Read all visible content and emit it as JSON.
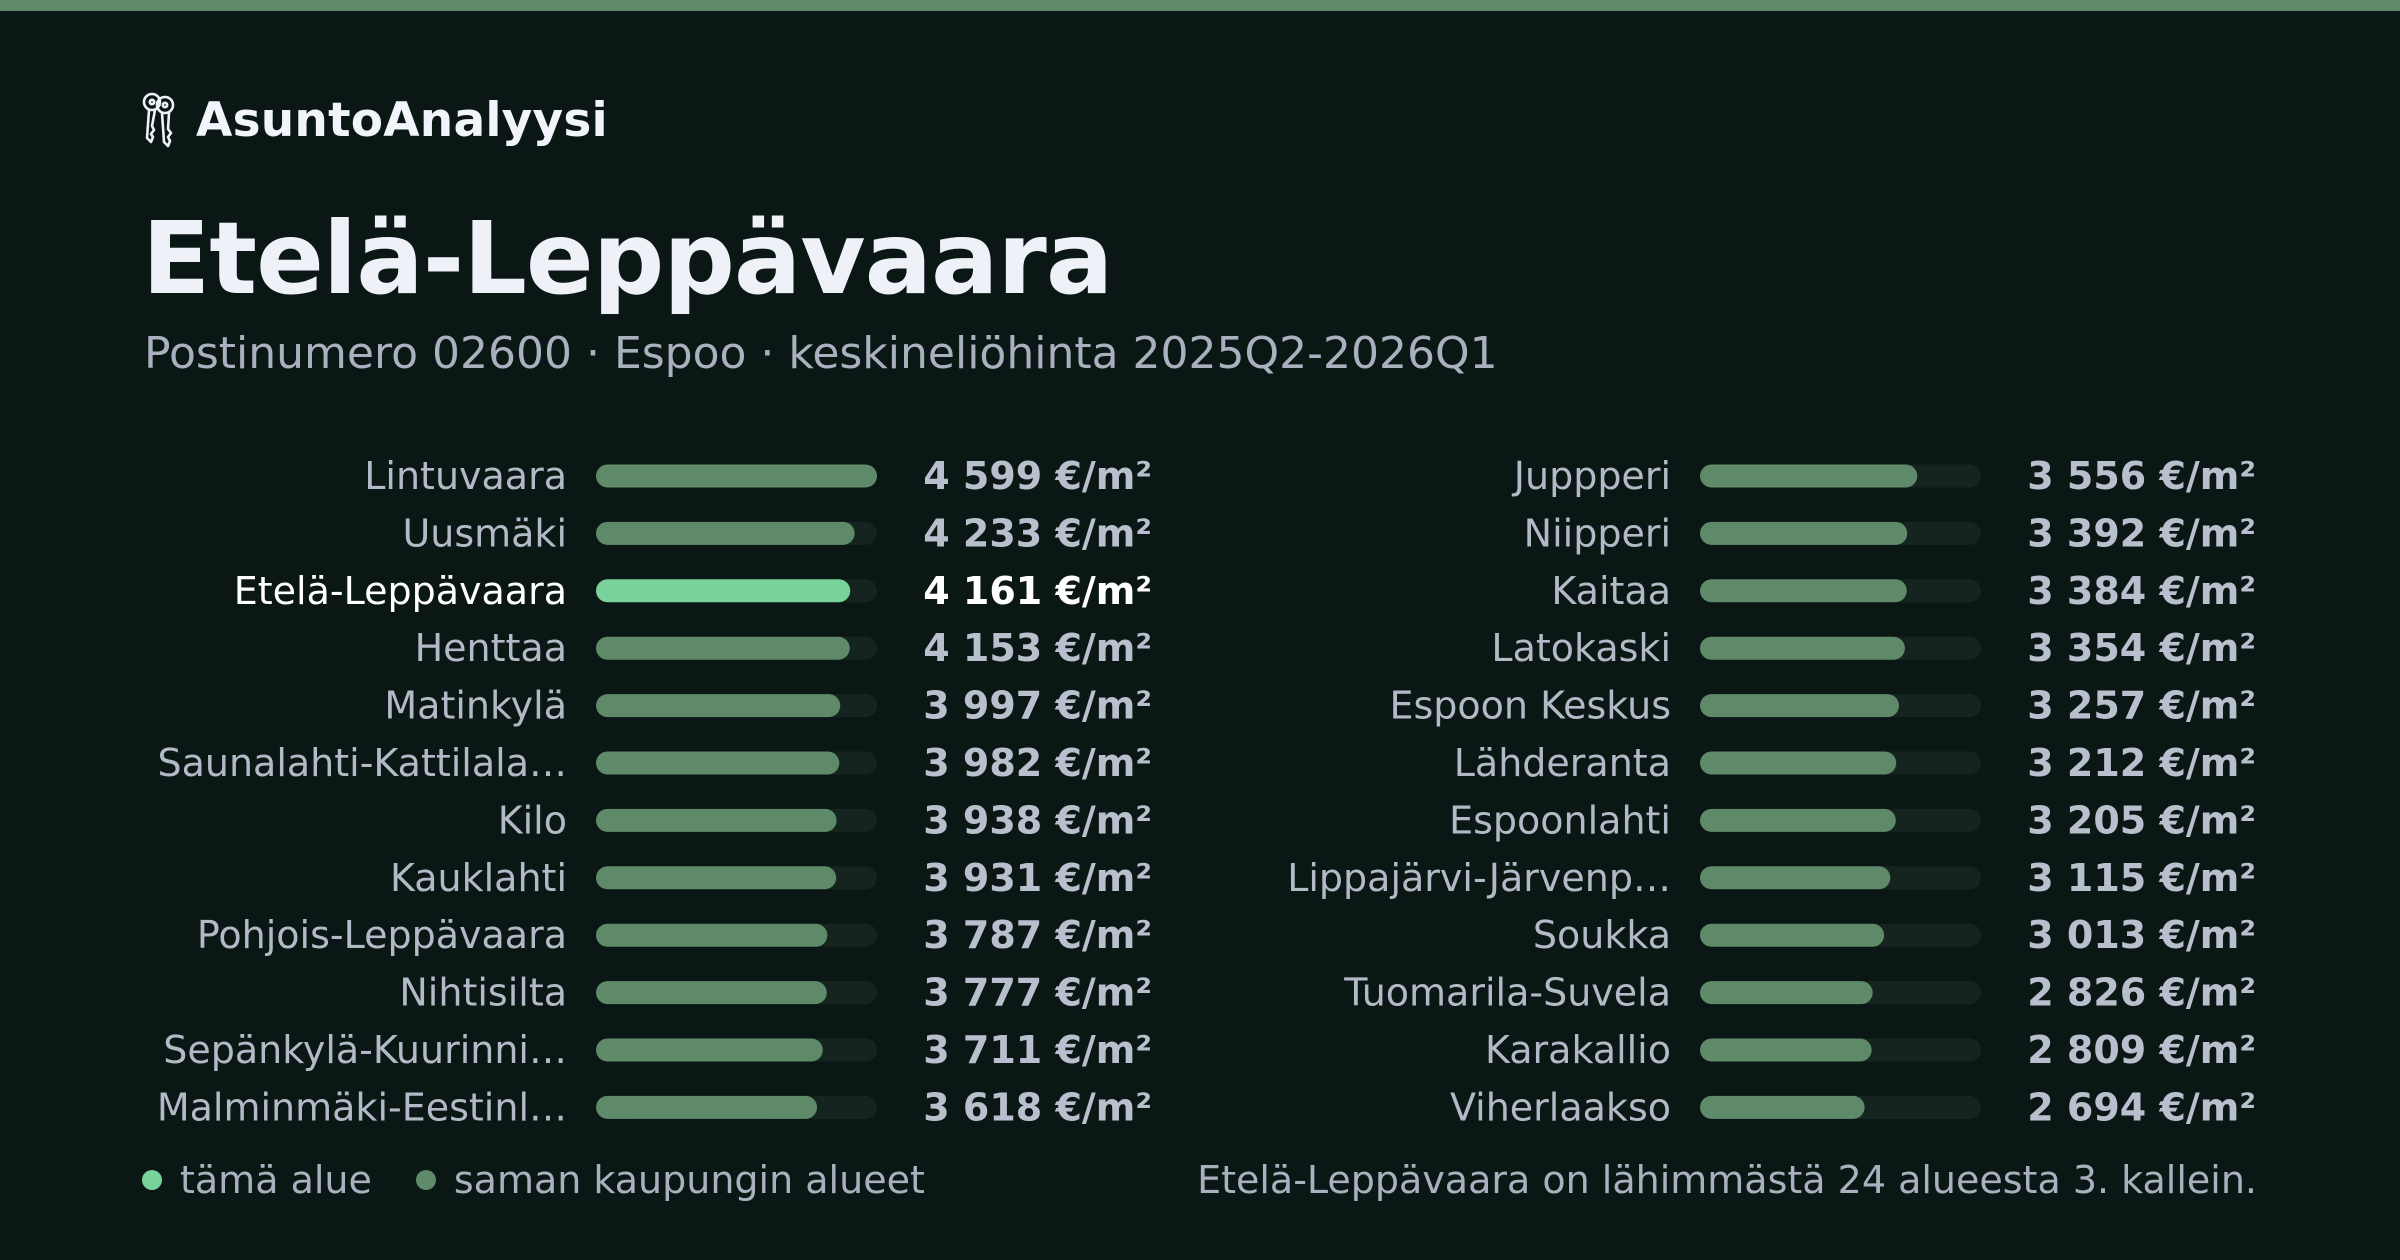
{
  "brand": {
    "name": "AsuntoAnalyysi",
    "icon": "keys-icon"
  },
  "header": {
    "title": "Etelä-Leppävaara",
    "subtitle": "Postinumero 02600 · Espoo · keskineliöhinta 2025Q2-2026Q1"
  },
  "colors": {
    "background": "#0b1714",
    "stripe": "#5f8a69",
    "highlight_bar": "#78d39a",
    "other_bar": "#5f8a69",
    "track": "#16241f",
    "label": "#b3bac7",
    "value": "#b8c0ce",
    "highlight_text": "#ffffff"
  },
  "legend": {
    "this_area": "tämä alue",
    "same_city": "saman kaupungin alueet"
  },
  "note": "Etelä-Leppävaara on lähimmästä 24 alueesta 3. kallein.",
  "chart_data": {
    "type": "bar",
    "orientation": "horizontal",
    "unit": "€/m²",
    "highlight": "Etelä-Leppävaara",
    "columns": [
      [
        {
          "label": "Lintuvaara",
          "value": 4599,
          "display": "4 599 €/m²"
        },
        {
          "label": "Uusmäki",
          "value": 4233,
          "display": "4 233 €/m²"
        },
        {
          "label": "Etelä-Leppävaara",
          "value": 4161,
          "display": "4 161 €/m²"
        },
        {
          "label": "Henttaa",
          "value": 4153,
          "display": "4 153 €/m²"
        },
        {
          "label": "Matinkylä",
          "value": 3997,
          "display": "3 997 €/m²"
        },
        {
          "label": "Saunalahti-Kattilala…",
          "value": 3982,
          "display": "3 982 €/m²"
        },
        {
          "label": "Kilo",
          "value": 3938,
          "display": "3 938 €/m²"
        },
        {
          "label": "Kauklahti",
          "value": 3931,
          "display": "3 931 €/m²"
        },
        {
          "label": "Pohjois-Leppävaara",
          "value": 3787,
          "display": "3 787 €/m²"
        },
        {
          "label": "Nihtisilta",
          "value": 3777,
          "display": "3 777 €/m²"
        },
        {
          "label": "Sepänkylä-Kuurinni…",
          "value": 3711,
          "display": "3 711 €/m²"
        },
        {
          "label": "Malminmäki-Eestinl…",
          "value": 3618,
          "display": "3 618 €/m²"
        }
      ],
      [
        {
          "label": "Juppperi",
          "value": 3556,
          "display": "3 556 €/m²"
        },
        {
          "label": "Niipperi",
          "value": 3392,
          "display": "3 392 €/m²"
        },
        {
          "label": "Kaitaa",
          "value": 3384,
          "display": "3 384 €/m²"
        },
        {
          "label": "Latokaski",
          "value": 3354,
          "display": "3 354 €/m²"
        },
        {
          "label": "Espoon Keskus",
          "value": 3257,
          "display": "3 257 €/m²"
        },
        {
          "label": "Lähderanta",
          "value": 3212,
          "display": "3 212 €/m²"
        },
        {
          "label": "Espoonlahti",
          "value": 3205,
          "display": "3 205 €/m²"
        },
        {
          "label": "Lippajärvi-Järvenp…",
          "value": 3115,
          "display": "3 115 €/m²"
        },
        {
          "label": "Soukka",
          "value": 3013,
          "display": "3 013 €/m²"
        },
        {
          "label": "Tuomarila-Suvela",
          "value": 2826,
          "display": "2 826 €/m²"
        },
        {
          "label": "Karakallio",
          "value": 2809,
          "display": "2 809 €/m²"
        },
        {
          "label": "Viherlaakso",
          "value": 2694,
          "display": "2 694 €/m²"
        }
      ]
    ],
    "xlim": [
      0,
      4599
    ]
  }
}
